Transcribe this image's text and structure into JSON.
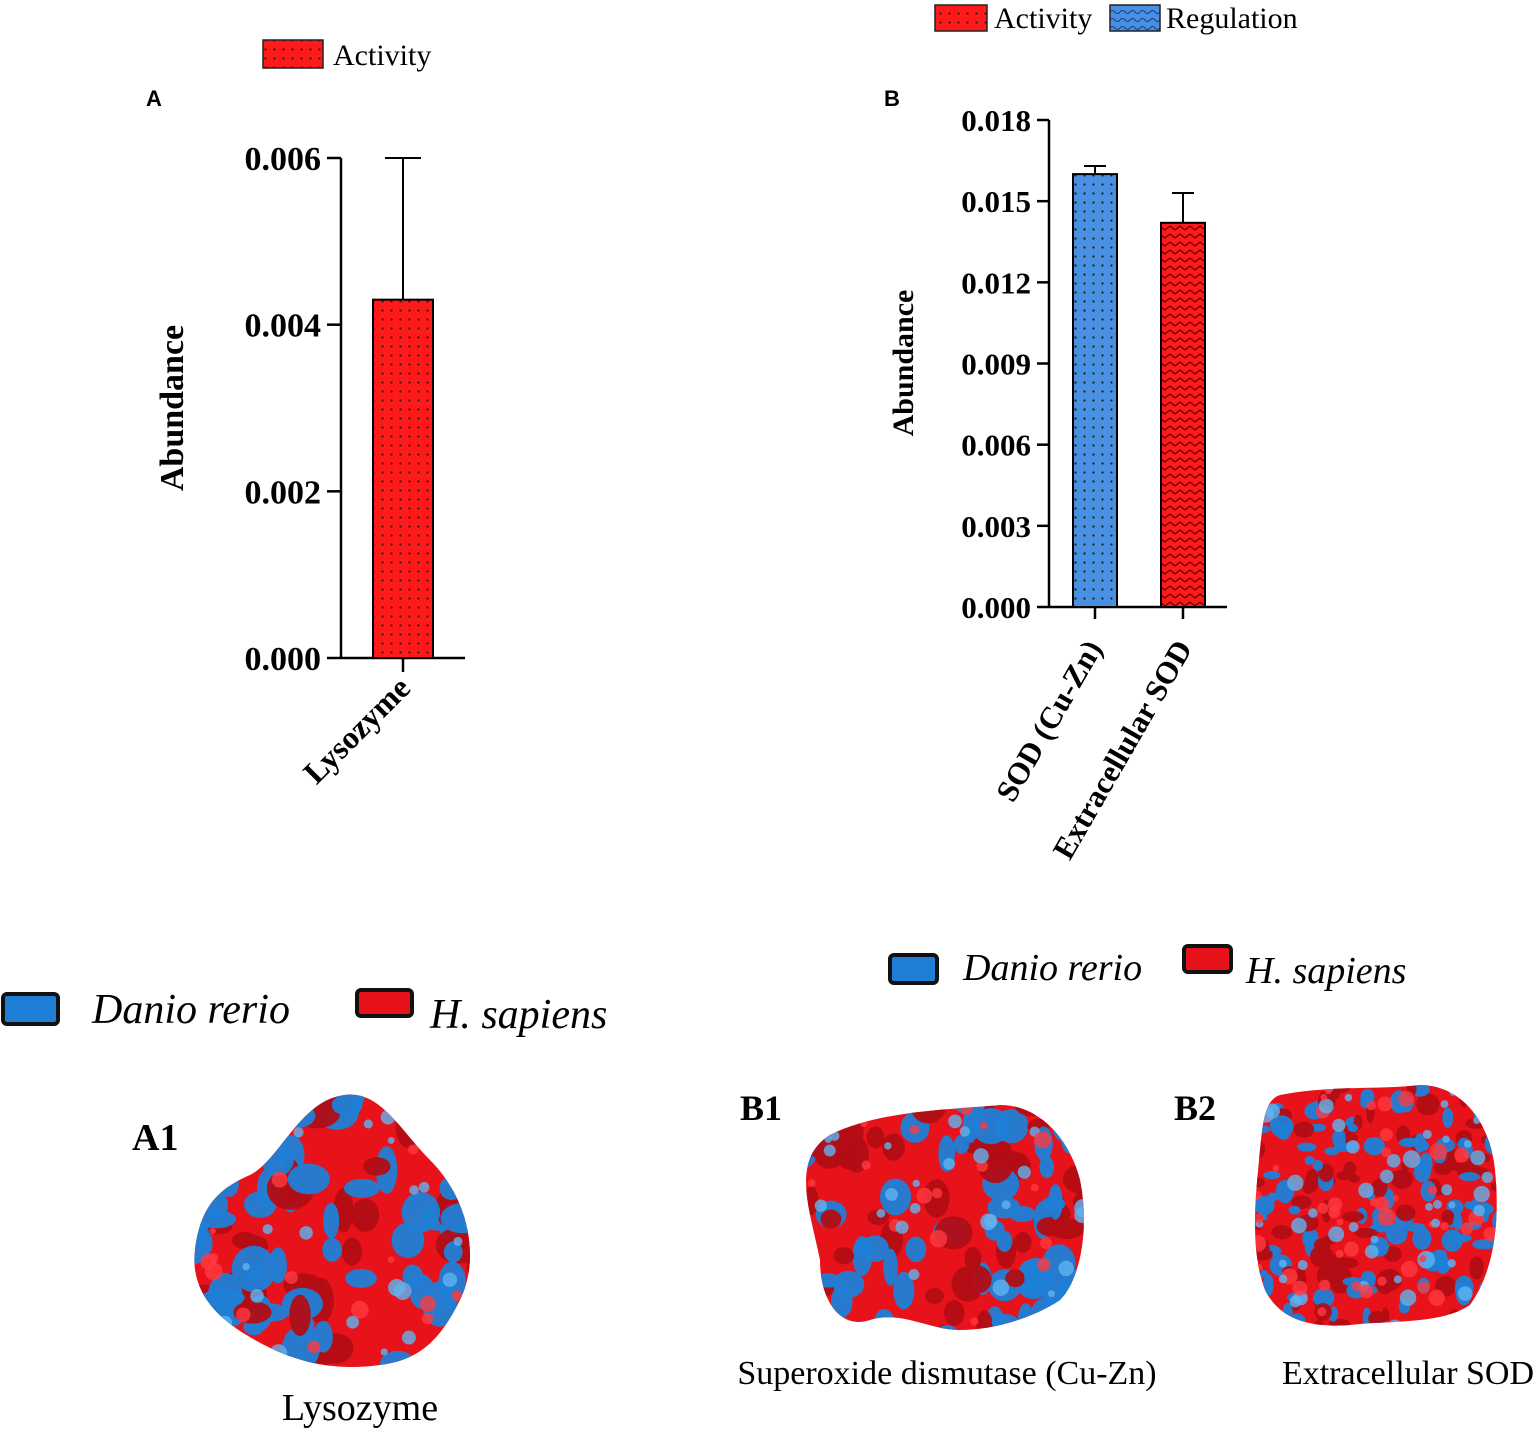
{
  "colors": {
    "activity": "#ff1a1a",
    "regulation": "#4a90e2",
    "danio": "#1f7fd6",
    "sapiens": "#e8121b",
    "axis": "#000000"
  },
  "chart_data": [
    {
      "panel": "A",
      "type": "bar",
      "categories": [
        "Lysozyme"
      ],
      "series": [
        {
          "name": "Activity",
          "values": [
            0.0043
          ],
          "errors": [
            0.0017
          ],
          "pattern": "dots",
          "color": "#ff1a1a"
        }
      ],
      "legend": [
        "Activity"
      ],
      "ylabel": "Abundance",
      "ylim": [
        0,
        0.006
      ],
      "yticks": [
        "0.000",
        "0.002",
        "0.004",
        "0.006"
      ],
      "ytick_values": [
        0,
        0.002,
        0.004,
        0.006
      ],
      "legend_position": "top"
    },
    {
      "panel": "B",
      "type": "bar",
      "categories": [
        "SOD (Cu-Zn)",
        "Extracellular SOD"
      ],
      "series": [
        {
          "name": "Regulation",
          "values": [
            0.016,
            null
          ],
          "errors": [
            0.0003,
            null
          ],
          "pattern": "dots",
          "color": "#4a90e2"
        },
        {
          "name": "Activity",
          "values": [
            null,
            0.0142
          ],
          "errors": [
            null,
            0.0011
          ],
          "pattern": "zigzag",
          "color": "#ff1a1a"
        }
      ],
      "legend": [
        "Activity",
        "Regulation"
      ],
      "ylabel": "Abundance",
      "ylim": [
        0,
        0.018
      ],
      "yticks": [
        "0.000",
        "0.003",
        "0.006",
        "0.009",
        "0.012",
        "0.015",
        "0.018"
      ],
      "ytick_values": [
        0,
        0.003,
        0.006,
        0.009,
        0.012,
        0.015,
        0.018
      ],
      "legend_position": "top"
    }
  ],
  "panels": {
    "a_label": "A",
    "b_label": "B",
    "a1_label": "A1",
    "b1_label": "B1",
    "b2_label": "B2"
  },
  "legend_a": {
    "activity": "Activity"
  },
  "legend_b": {
    "activity": "Activity",
    "regulation": "Regulation"
  },
  "species_legend_left": {
    "danio": "Danio rerio",
    "sapiens": "H. sapiens"
  },
  "species_legend_right": {
    "danio": "Danio rerio",
    "sapiens": "H. sapiens"
  },
  "structures": [
    {
      "id": "A1",
      "caption": "Lysozyme"
    },
    {
      "id": "B1",
      "caption": "Superoxide dismutase (Cu-Zn)"
    },
    {
      "id": "B2",
      "caption": "Extracellular SOD"
    }
  ]
}
